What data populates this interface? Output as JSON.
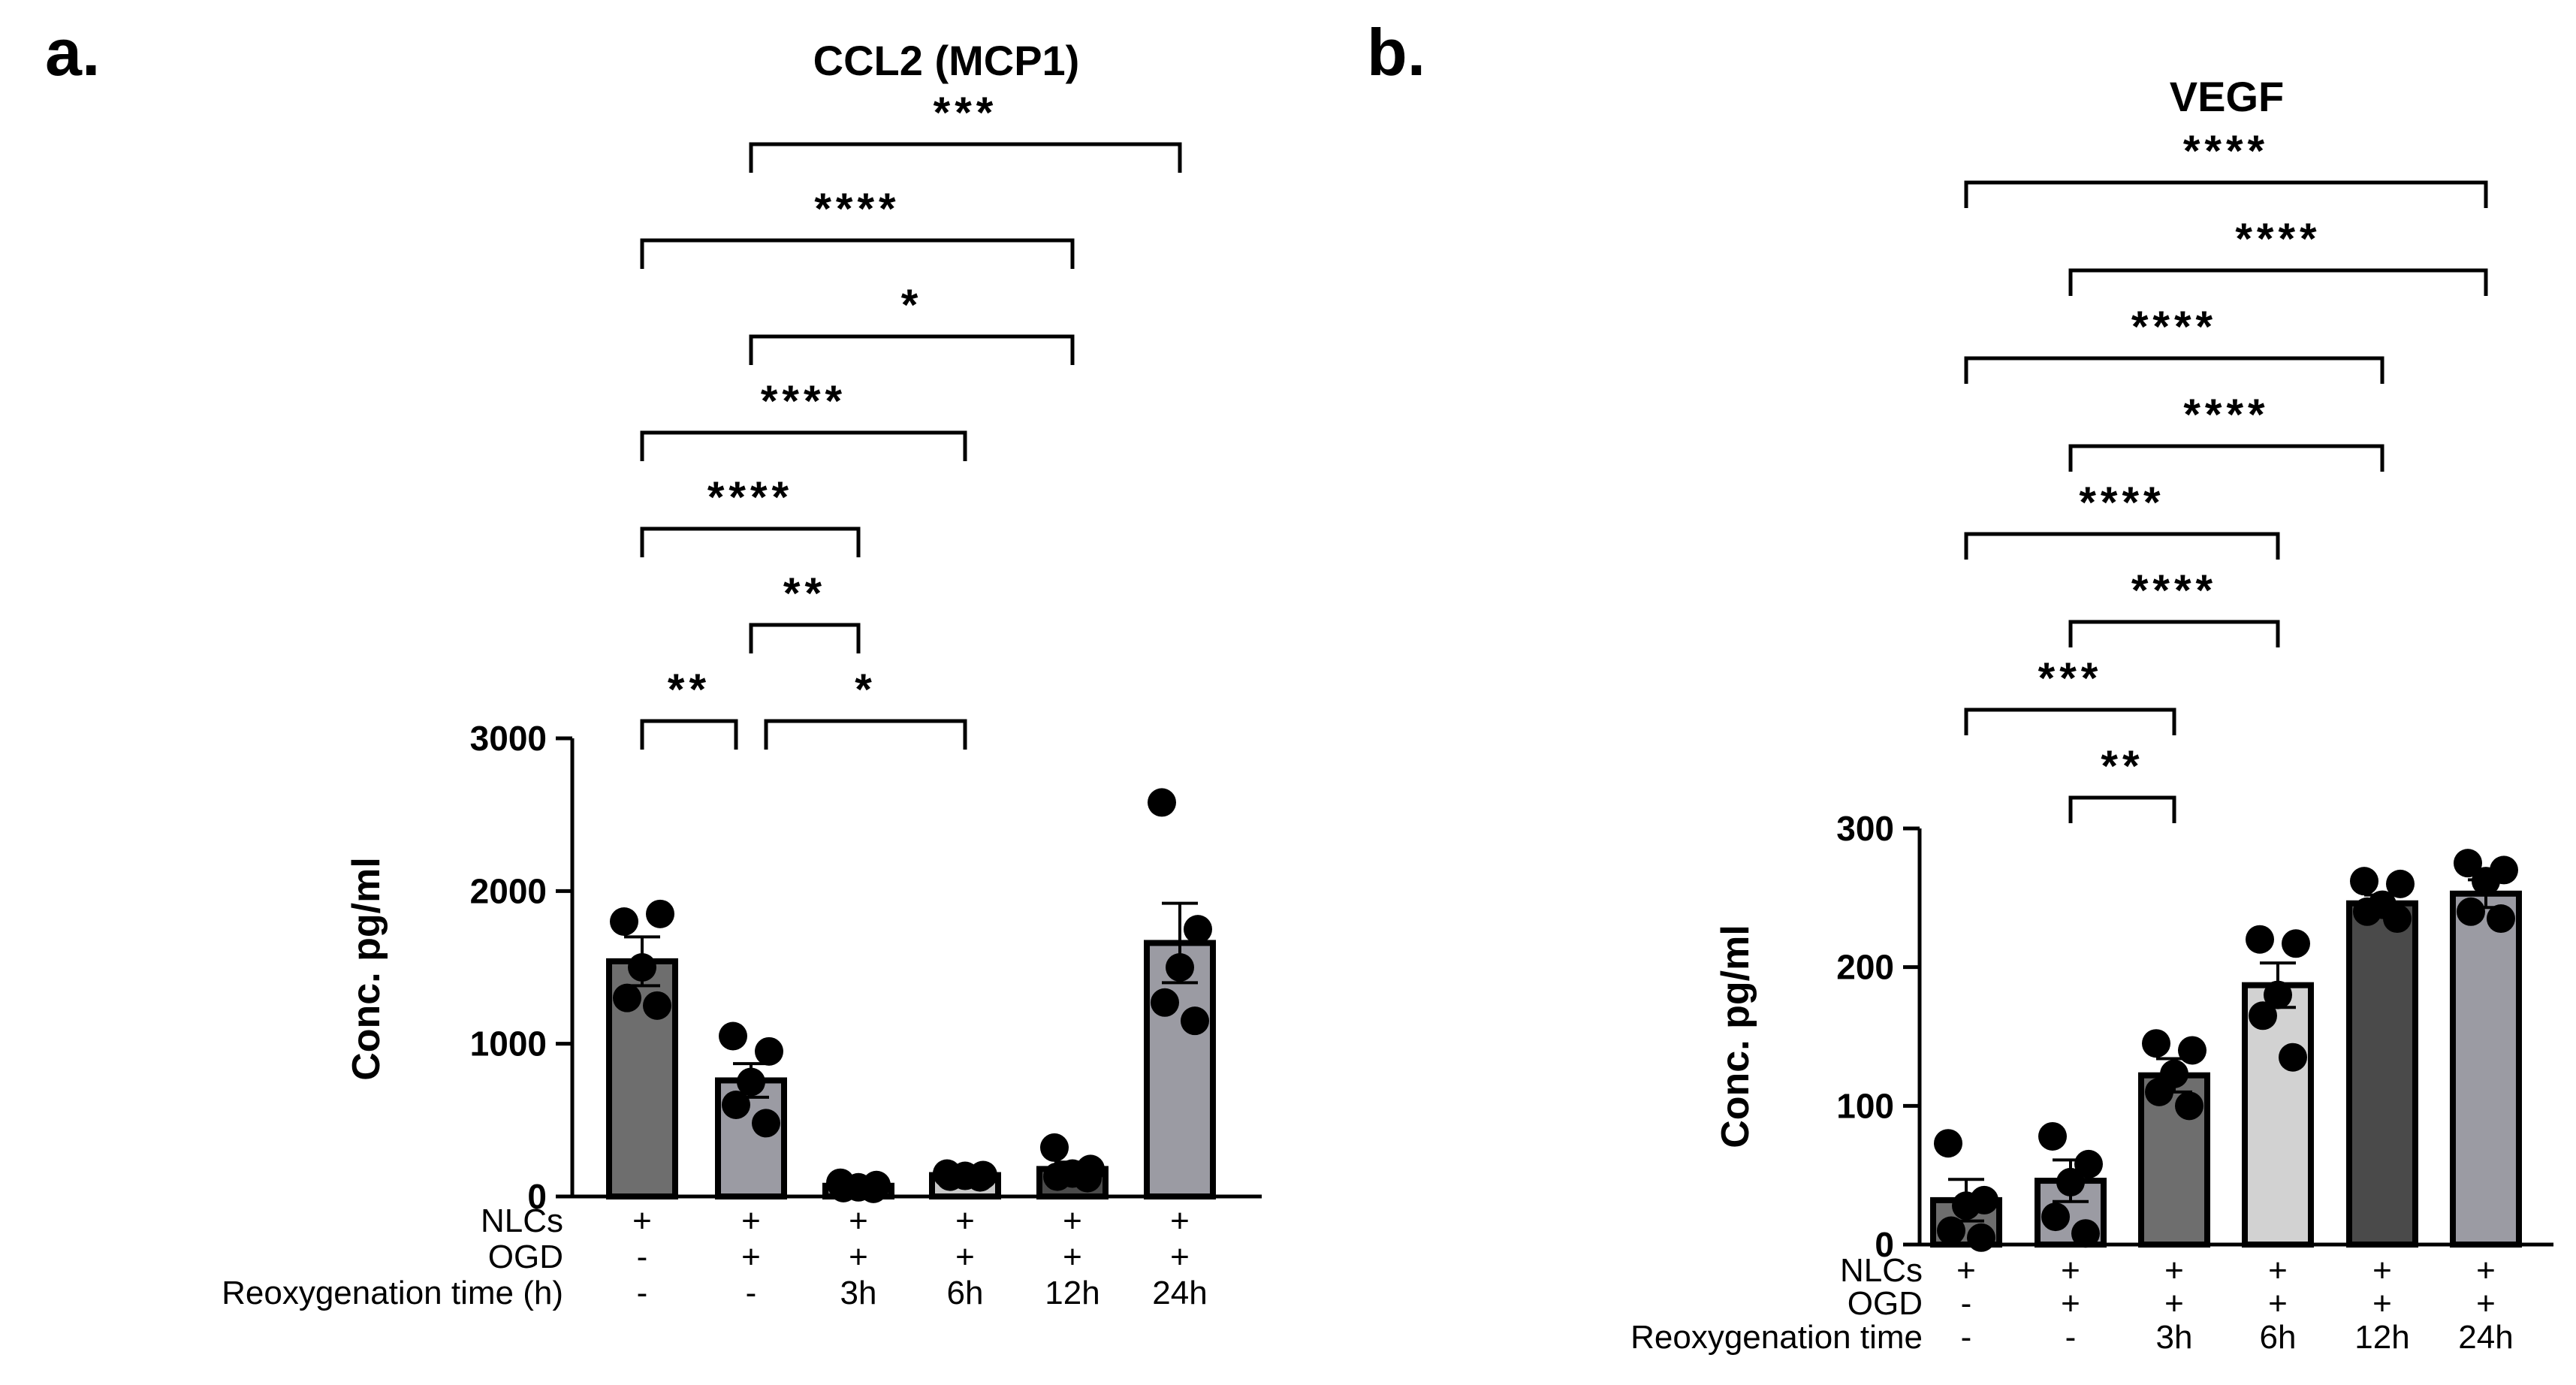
{
  "chart_data": [
    {
      "panel": "a.",
      "type": "bar",
      "title": "CCL2 (MCP1)",
      "ylabel": "Conc. pg/ml",
      "xlabel": "",
      "ylim": [
        0,
        3000
      ],
      "yticks": [
        "0",
        "1000",
        "2000",
        "3000"
      ],
      "ytick_values": [
        0,
        1000,
        2000,
        3000
      ],
      "condition_rows": [
        {
          "label": "NLCs",
          "values": [
            "+",
            "+",
            "+",
            "+",
            "+",
            "+"
          ]
        },
        {
          "label": "OGD",
          "values": [
            "-",
            "+",
            "+",
            "+",
            "+",
            "+"
          ]
        },
        {
          "label": "Reoxygenation time (h)",
          "values": [
            "-",
            "-",
            "3h",
            "6h",
            "12h",
            "24h"
          ]
        }
      ],
      "bars": [
        {
          "mean": 1540,
          "sem": 160,
          "color": "#6e6e6e",
          "points": [
            1800,
            1850,
            1500,
            1300,
            1250
          ]
        },
        {
          "mean": 760,
          "sem": 110,
          "color": "#9b9ba3",
          "points": [
            1050,
            950,
            750,
            600,
            480
          ]
        },
        {
          "mean": 70,
          "sem": 15,
          "color": "#6e6e6e",
          "points": [
            90,
            75,
            60,
            55,
            50
          ]
        },
        {
          "mean": 140,
          "sem": 15,
          "color": "#c8c8c8",
          "points": [
            150,
            140,
            135,
            130,
            125
          ]
        },
        {
          "mean": 180,
          "sem": 45,
          "color": "#4a4a4a",
          "points": [
            320,
            180,
            150,
            130,
            120
          ]
        },
        {
          "mean": 1660,
          "sem": 260,
          "color": "#9b9ba3",
          "points": [
            2580,
            1750,
            1500,
            1270,
            1150
          ]
        }
      ],
      "significance": [
        {
          "from": 0,
          "to": 1,
          "label": "**"
        },
        {
          "from": 1,
          "to": 3,
          "label": "*"
        },
        {
          "from": 1,
          "to": 2,
          "label": "**"
        },
        {
          "from": 0,
          "to": 2,
          "label": "****"
        },
        {
          "from": 0,
          "to": 3,
          "label": "****"
        },
        {
          "from": 1,
          "to": 4,
          "label": "*"
        },
        {
          "from": 0,
          "to": 4,
          "label": "****"
        },
        {
          "from": 1,
          "to": 5,
          "label": "***"
        }
      ]
    },
    {
      "panel": "b.",
      "type": "bar",
      "title": "VEGF",
      "ylabel": "Conc. pg/ml",
      "xlabel": "",
      "ylim": [
        0,
        300
      ],
      "yticks": [
        "0",
        "100",
        "200",
        "300"
      ],
      "ytick_values": [
        0,
        100,
        200,
        300
      ],
      "condition_rows": [
        {
          "label": "NLCs",
          "values": [
            "+",
            "+",
            "+",
            "+",
            "+",
            "+"
          ]
        },
        {
          "label": "OGD",
          "values": [
            "-",
            "+",
            "+",
            "+",
            "+",
            "+"
          ]
        },
        {
          "label": "Reoxygenation time",
          "values": [
            "-",
            "-",
            "3h",
            "6h",
            "12h",
            "24h"
          ]
        }
      ],
      "bars": [
        {
          "mean": 32,
          "sem": 15,
          "color": "#6e6e6e",
          "points": [
            73,
            32,
            28,
            10,
            5
          ]
        },
        {
          "mean": 46,
          "sem": 15,
          "color": "#9b9ba3",
          "points": [
            78,
            58,
            45,
            20,
            8
          ]
        },
        {
          "mean": 122,
          "sem": 12,
          "color": "#6e6e6e",
          "points": [
            145,
            140,
            123,
            110,
            100
          ]
        },
        {
          "mean": 187,
          "sem": 16,
          "color": "#d2d2d2",
          "points": [
            220,
            217,
            180,
            165,
            135
          ]
        },
        {
          "mean": 246,
          "sem": 6,
          "color": "#4a4a4a",
          "points": [
            262,
            260,
            245,
            240,
            235
          ]
        },
        {
          "mean": 253,
          "sem": 10,
          "color": "#9b9ba3",
          "points": [
            275,
            270,
            262,
            240,
            235
          ]
        }
      ],
      "significance": [
        {
          "from": 1,
          "to": 2,
          "label": "**"
        },
        {
          "from": 0,
          "to": 2,
          "label": "***"
        },
        {
          "from": 1,
          "to": 3,
          "label": "****"
        },
        {
          "from": 0,
          "to": 3,
          "label": "****"
        },
        {
          "from": 1,
          "to": 4,
          "label": "****"
        },
        {
          "from": 0,
          "to": 4,
          "label": "****"
        },
        {
          "from": 1,
          "to": 5,
          "label": "****"
        },
        {
          "from": 0,
          "to": 5,
          "label": "****"
        }
      ]
    }
  ]
}
